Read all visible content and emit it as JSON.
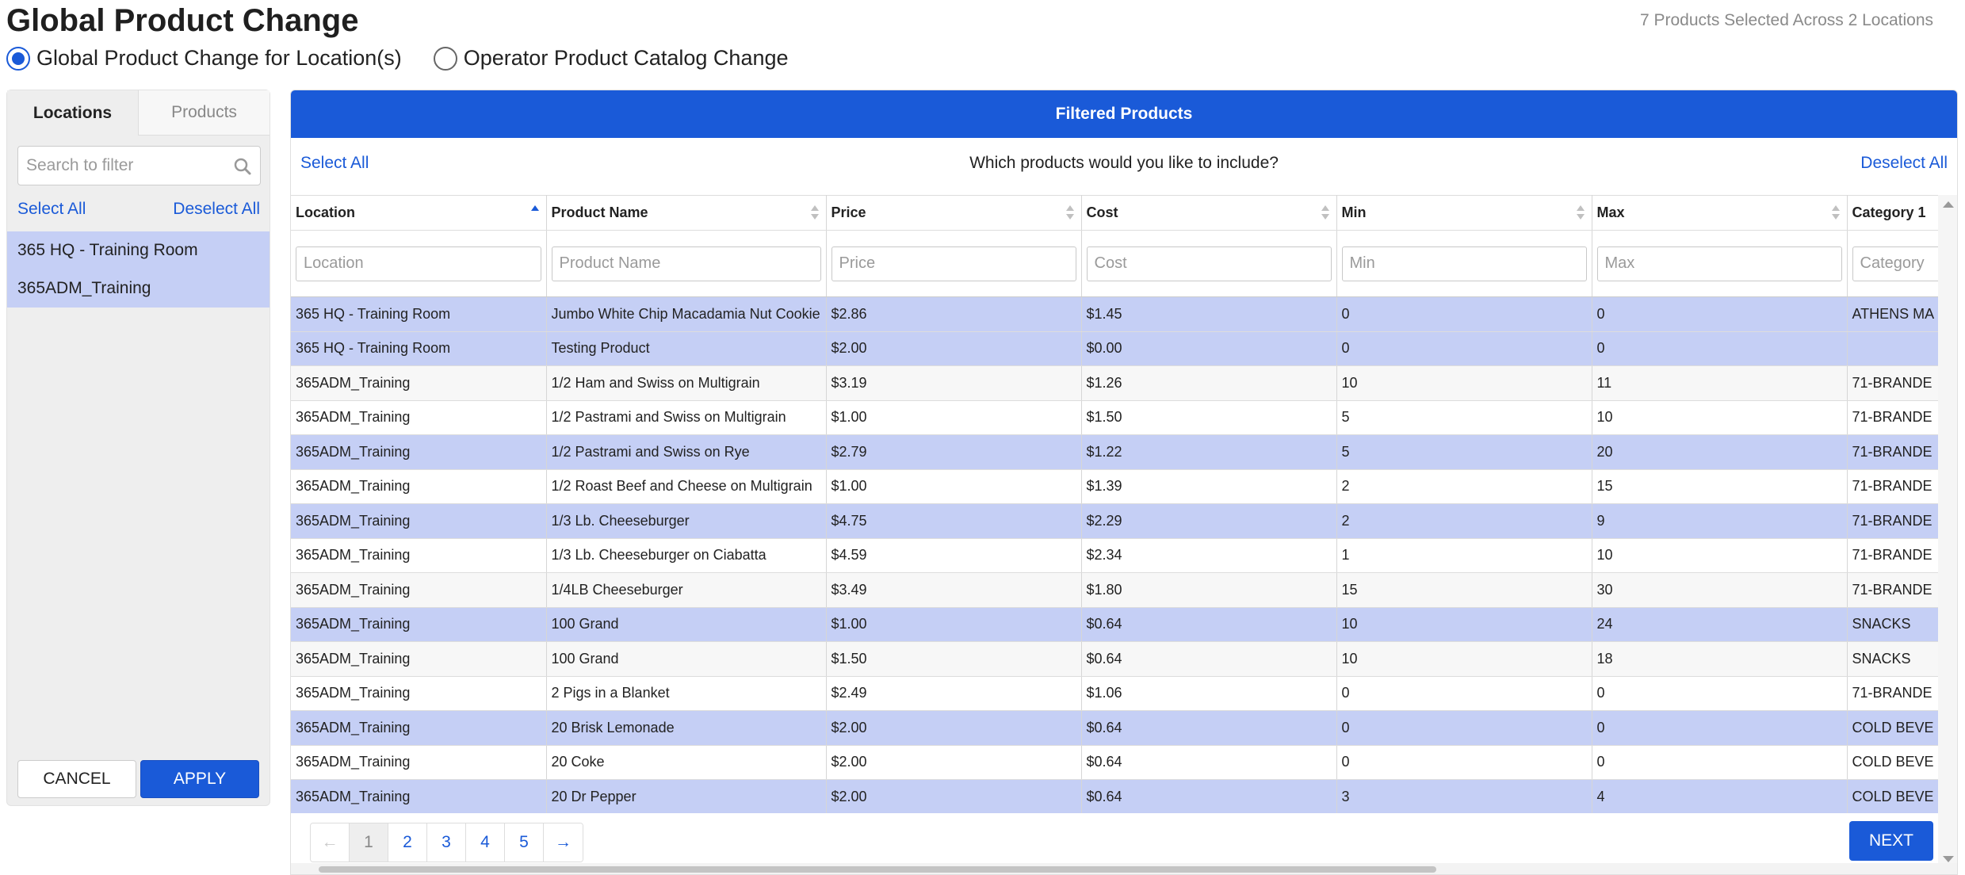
{
  "page": {
    "title": "Global Product Change",
    "summary": "7 Products Selected Across 2 Locations"
  },
  "mode": {
    "options": [
      {
        "label": "Global Product Change for Location(s)",
        "checked": true
      },
      {
        "label": "Operator Product Catalog Change",
        "checked": false
      }
    ]
  },
  "sidebar": {
    "tabs": [
      "Locations",
      "Products"
    ],
    "active_tab": "Locations",
    "search_placeholder": "Search to filter",
    "search_icon": "search-icon",
    "select_all": "Select All",
    "deselect_all": "Deselect All",
    "locations": [
      "365 HQ - Training Room",
      "365ADM_Training"
    ],
    "cancel_label": "CANCEL",
    "apply_label": "APPLY"
  },
  "main": {
    "header": "Filtered Products",
    "select_all": "Select All",
    "question": "Which products would you like to include?",
    "deselect_all": "Deselect All",
    "columns": [
      "Location",
      "Product Name",
      "Price",
      "Cost",
      "Min",
      "Max",
      "Category 1"
    ],
    "filter_placeholders": [
      "Location",
      "Product Name",
      "Price",
      "Cost",
      "Min",
      "Max",
      "Category"
    ],
    "sorted_column": "Location",
    "sort_direction": "ascending",
    "rows": [
      {
        "location": "365 HQ - Training Room",
        "product": "Jumbo White Chip Macadamia Nut Cookie",
        "price": "$2.86",
        "cost": "$1.45",
        "min": "0",
        "max": "0",
        "category": "ATHENS MA",
        "selected": true
      },
      {
        "location": "365 HQ - Training Room",
        "product": "Testing Product",
        "price": "$2.00",
        "cost": "$0.00",
        "min": "0",
        "max": "0",
        "category": "",
        "selected": true
      },
      {
        "location": "365ADM_Training",
        "product": "1/2 Ham and Swiss on Multigrain",
        "price": "$3.19",
        "cost": "$1.26",
        "min": "10",
        "max": "11",
        "category": "71-BRANDE",
        "selected": false
      },
      {
        "location": "365ADM_Training",
        "product": "1/2 Pastrami and Swiss on Multigrain",
        "price": "$1.00",
        "cost": "$1.50",
        "min": "5",
        "max": "10",
        "category": "71-BRANDE",
        "selected": false
      },
      {
        "location": "365ADM_Training",
        "product": "1/2 Pastrami and Swiss on Rye",
        "price": "$2.79",
        "cost": "$1.22",
        "min": "5",
        "max": "20",
        "category": "71-BRANDE",
        "selected": true
      },
      {
        "location": "365ADM_Training",
        "product": "1/2 Roast Beef and Cheese on Multigrain",
        "price": "$1.00",
        "cost": "$1.39",
        "min": "2",
        "max": "15",
        "category": "71-BRANDE",
        "selected": false
      },
      {
        "location": "365ADM_Training",
        "product": "1/3 Lb. Cheeseburger",
        "price": "$4.75",
        "cost": "$2.29",
        "min": "2",
        "max": "9",
        "category": "71-BRANDE",
        "selected": true
      },
      {
        "location": "365ADM_Training",
        "product": "1/3 Lb. Cheeseburger on Ciabatta",
        "price": "$4.59",
        "cost": "$2.34",
        "min": "1",
        "max": "10",
        "category": "71-BRANDE",
        "selected": false
      },
      {
        "location": "365ADM_Training",
        "product": "1/4LB Cheeseburger",
        "price": "$3.49",
        "cost": "$1.80",
        "min": "15",
        "max": "30",
        "category": "71-BRANDE",
        "selected": false
      },
      {
        "location": "365ADM_Training",
        "product": "100 Grand",
        "price": "$1.00",
        "cost": "$0.64",
        "min": "10",
        "max": "24",
        "category": "SNACKS",
        "selected": true
      },
      {
        "location": "365ADM_Training",
        "product": "100 Grand",
        "price": "$1.50",
        "cost": "$0.64",
        "min": "10",
        "max": "18",
        "category": "SNACKS",
        "selected": false
      },
      {
        "location": "365ADM_Training",
        "product": "2 Pigs in a Blanket",
        "price": "$2.49",
        "cost": "$1.06",
        "min": "0",
        "max": "0",
        "category": "71-BRANDE",
        "selected": false
      },
      {
        "location": "365ADM_Training",
        "product": "20 Brisk Lemonade",
        "price": "$2.00",
        "cost": "$0.64",
        "min": "0",
        "max": "0",
        "category": "COLD BEVE",
        "selected": true
      },
      {
        "location": "365ADM_Training",
        "product": "20 Coke",
        "price": "$2.00",
        "cost": "$0.64",
        "min": "0",
        "max": "0",
        "category": "COLD BEVE",
        "selected": false
      },
      {
        "location": "365ADM_Training",
        "product": "20 Dr Pepper",
        "price": "$2.00",
        "cost": "$0.64",
        "min": "3",
        "max": "4",
        "category": "COLD BEVE",
        "selected": true
      }
    ],
    "pagination": {
      "prev": "←",
      "pages": [
        "1",
        "2",
        "3",
        "4",
        "5"
      ],
      "current": "1",
      "next": "→"
    },
    "next_label": "NEXT"
  },
  "colors": {
    "accent": "#1a5ad8",
    "selected_row": "#c5cff5"
  }
}
